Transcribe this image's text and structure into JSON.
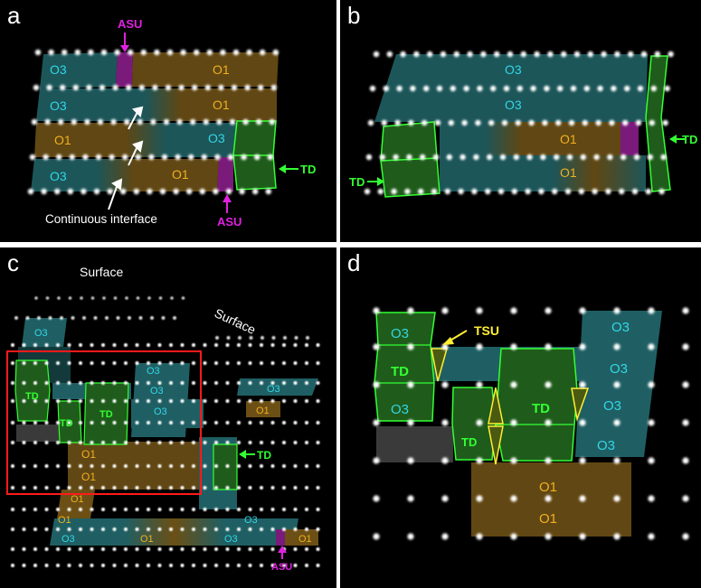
{
  "panels": {
    "a": {
      "label": "a"
    },
    "b": {
      "label": "b"
    },
    "c": {
      "label": "c"
    },
    "d": {
      "label": "d"
    }
  },
  "labels": {
    "O3": "O3",
    "O1": "O1",
    "TD": "TD",
    "ASU": "ASU",
    "TSU": "TSU",
    "continuous_interface": "Continuous interface",
    "surface": "Surface"
  },
  "colors": {
    "o3_fill": "#1f5f63",
    "o1_fill": "#6b4f15",
    "td_fill": "#1f5c1b",
    "td_stroke": "#33ff33",
    "asu": "#7a1a7a",
    "asu_text": "#e020e0",
    "tsu": "#ffee33",
    "o3_text": "#33d6e6",
    "o1_text": "#f0b020",
    "frame": "#ff1a1a",
    "atom": "#ffffff"
  }
}
